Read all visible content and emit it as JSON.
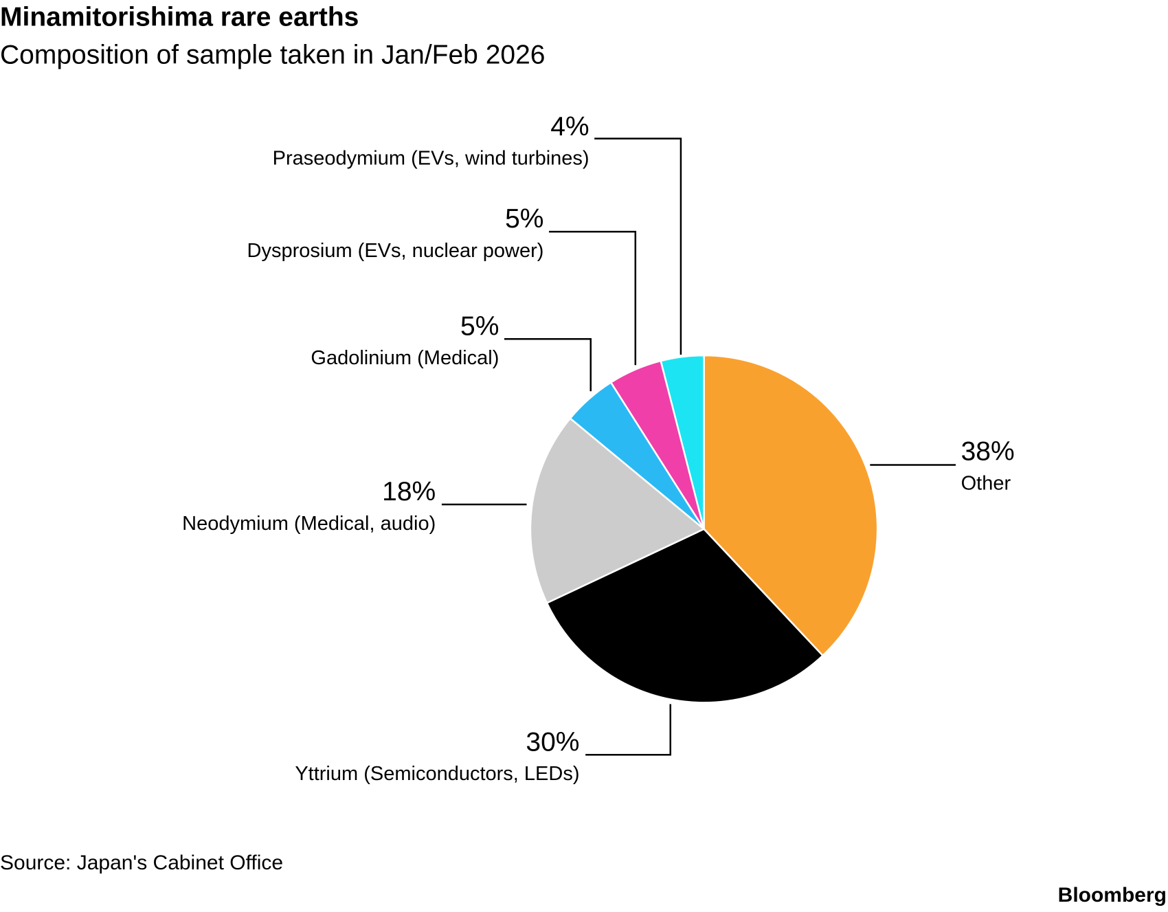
{
  "chart_data": {
    "type": "pie",
    "title": "Minamitorishima rare earths",
    "subtitle": "Composition of sample taken in Jan/Feb 2026",
    "categories": [
      "Other",
      "Yttrium (Semiconductors, LEDs)",
      "Neodymium (Medical, audio)",
      "Gadolinium (Medical)",
      "Dysprosium (EVs, nuclear power)",
      "Praseodymium (EVs, wind turbines)"
    ],
    "values": [
      38,
      30,
      18,
      5,
      5,
      4
    ],
    "value_labels": [
      "38%",
      "30%",
      "18%",
      "5%",
      "5%",
      "4%"
    ],
    "colors": [
      "#f9a12e",
      "#000000",
      "#cccccc",
      "#2bb9f4",
      "#f03fa8",
      "#1de4f2"
    ],
    "source": "Source: Japan's Cabinet Office",
    "credit": "Bloomberg"
  }
}
